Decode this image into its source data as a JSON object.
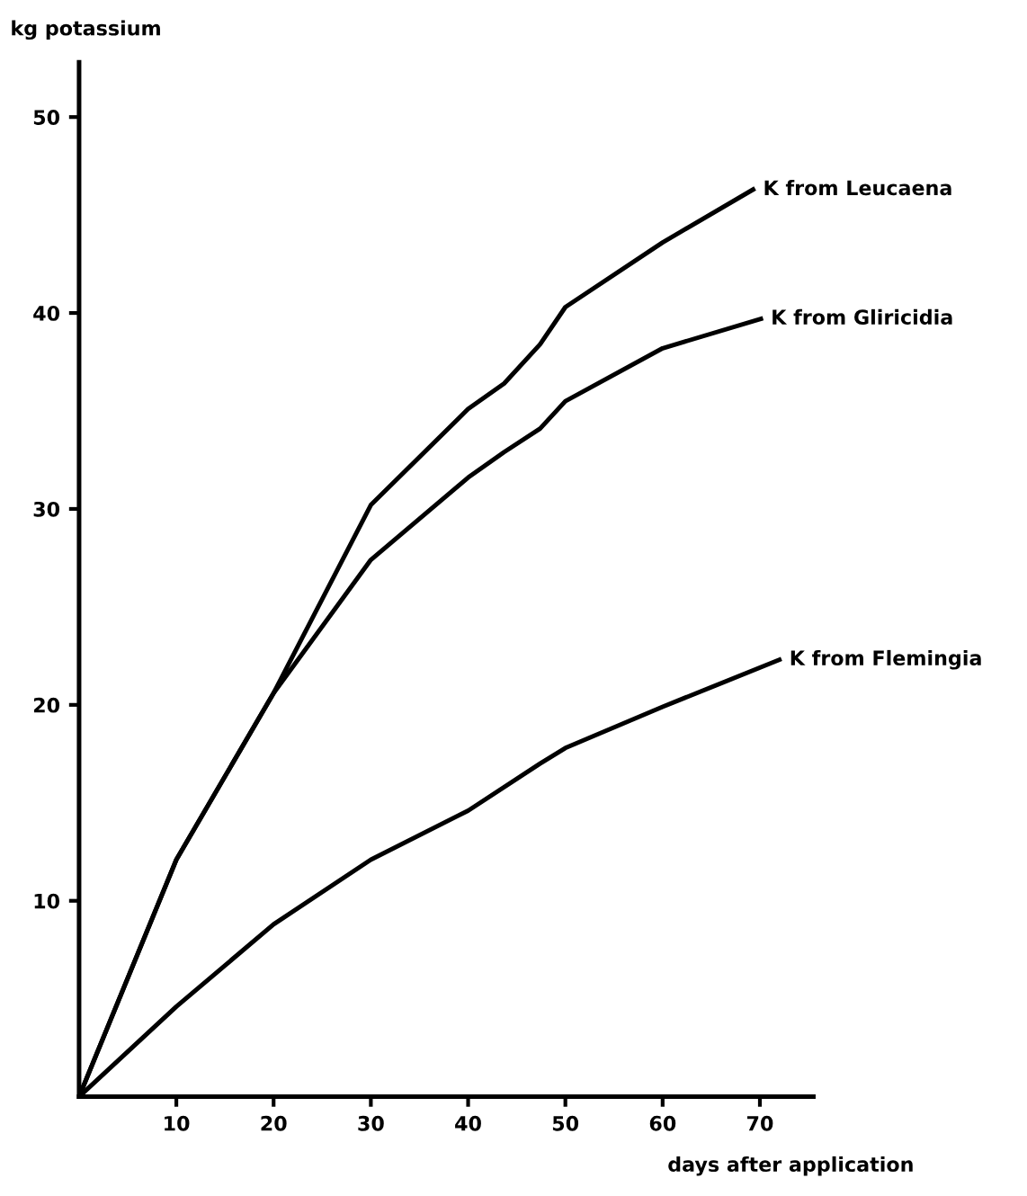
{
  "chart_data": {
    "type": "line",
    "xlabel": "days after application",
    "ylabel": "kg potassium",
    "x": [
      0,
      10,
      20,
      30,
      40,
      43.7,
      47.4,
      50,
      60,
      69.3
    ],
    "series": [
      {
        "name": "K from Leucaena",
        "color": "#000000",
        "values": [
          0,
          12.1,
          20.6,
          30.2,
          35.1,
          36.4,
          38.4,
          40.3,
          43.6,
          46.3
        ]
      },
      {
        "name": "K from Gliricidia",
        "color": "#000000",
        "x": [
          0,
          10,
          20,
          30,
          40,
          43.7,
          47.4,
          50,
          60,
          70.1
        ],
        "values": [
          0,
          12.1,
          20.6,
          27.4,
          31.6,
          32.9,
          34.1,
          35.5,
          38.2,
          39.7
        ]
      },
      {
        "name": "K from Flemingia",
        "color": "#000000",
        "x": [
          0,
          10,
          20,
          30,
          40,
          47.4,
          50,
          60,
          72
        ],
        "values": [
          0,
          4.6,
          8.8,
          12.1,
          14.6,
          17.0,
          17.8,
          19.9,
          22.3
        ]
      }
    ],
    "xlim": [
      0,
      75.5
    ],
    "ylim": [
      0,
      52.8
    ],
    "xticks": [
      10,
      20,
      30,
      40,
      50,
      60,
      70
    ],
    "yticks": [
      10,
      20,
      30,
      40,
      50
    ],
    "grid": false,
    "legend": false,
    "marker": "none",
    "line_style": "solid"
  }
}
